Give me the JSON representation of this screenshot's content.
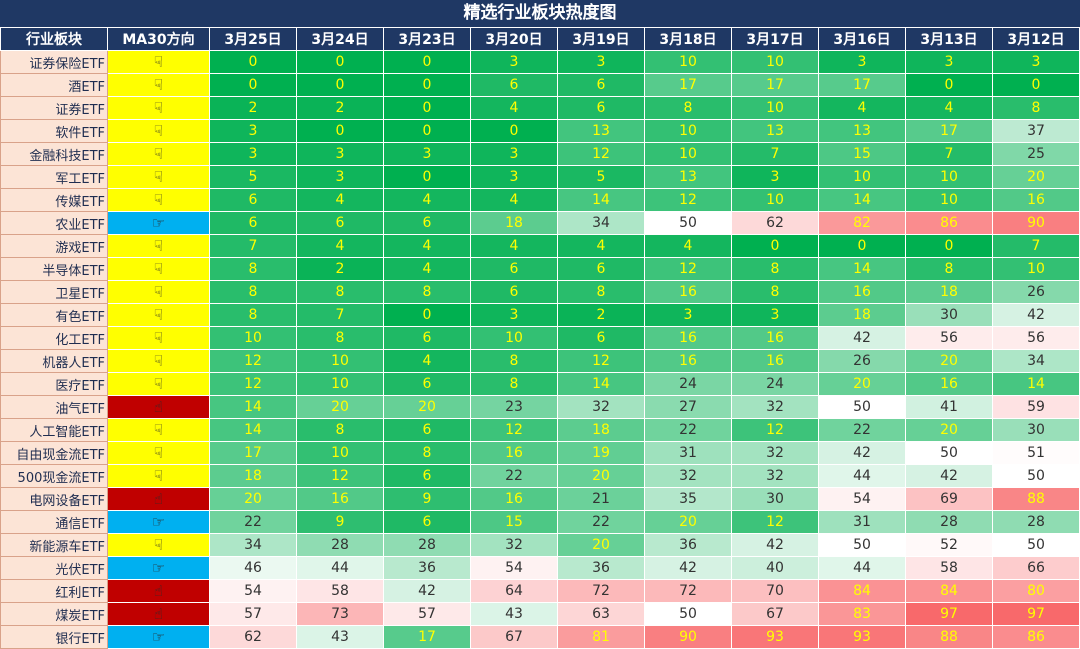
{
  "chart_data": {
    "type": "heatmap",
    "title": "精选行业板块热度图",
    "header_sector": "行业板块",
    "header_ma": "MA30方向",
    "dates": [
      "3月25日",
      "3月24日",
      "3月23日",
      "3月20日",
      "3月19日",
      "3月18日",
      "3月17日",
      "3月16日",
      "3月13日",
      "3月12日"
    ],
    "direction_colors": {
      "down": "#ffff00",
      "up": "#00b0f0",
      "strong": "#c00000"
    },
    "direction_icons": {
      "down": "☟",
      "up": "☞",
      "strong": "☝"
    },
    "rows": [
      {
        "name": "证券保险ETF",
        "dir": "down",
        "values": [
          0,
          0,
          0,
          3,
          3,
          10,
          10,
          3,
          3,
          3
        ]
      },
      {
        "name": "酒ETF",
        "dir": "down",
        "values": [
          0,
          0,
          0,
          6,
          6,
          17,
          17,
          17,
          0,
          0
        ]
      },
      {
        "name": "证券ETF",
        "dir": "down",
        "values": [
          2,
          2,
          0,
          4,
          6,
          8,
          10,
          4,
          4,
          8
        ]
      },
      {
        "name": "软件ETF",
        "dir": "down",
        "values": [
          3,
          0,
          0,
          0,
          13,
          10,
          13,
          13,
          17,
          37
        ]
      },
      {
        "name": "金融科技ETF",
        "dir": "down",
        "values": [
          3,
          3,
          3,
          3,
          12,
          10,
          7,
          15,
          7,
          25
        ]
      },
      {
        "name": "军工ETF",
        "dir": "down",
        "values": [
          5,
          3,
          0,
          3,
          5,
          13,
          3,
          10,
          10,
          20
        ]
      },
      {
        "name": "传媒ETF",
        "dir": "down",
        "values": [
          6,
          4,
          4,
          4,
          14,
          12,
          10,
          14,
          10,
          16
        ]
      },
      {
        "name": "农业ETF",
        "dir": "up",
        "values": [
          6,
          6,
          6,
          18,
          34,
          50,
          62,
          82,
          86,
          90
        ]
      },
      {
        "name": "游戏ETF",
        "dir": "down",
        "values": [
          7,
          4,
          4,
          4,
          4,
          4,
          0,
          0,
          0,
          7
        ]
      },
      {
        "name": "半导体ETF",
        "dir": "down",
        "values": [
          8,
          2,
          4,
          6,
          6,
          12,
          8,
          14,
          8,
          10
        ]
      },
      {
        "name": "卫星ETF",
        "dir": "down",
        "values": [
          8,
          8,
          8,
          6,
          8,
          16,
          8,
          16,
          18,
          26
        ]
      },
      {
        "name": "有色ETF",
        "dir": "down",
        "values": [
          8,
          7,
          0,
          3,
          2,
          3,
          3,
          18,
          30,
          42
        ]
      },
      {
        "name": "化工ETF",
        "dir": "down",
        "values": [
          10,
          8,
          6,
          10,
          6,
          16,
          16,
          42,
          56,
          56
        ]
      },
      {
        "name": "机器人ETF",
        "dir": "down",
        "values": [
          12,
          10,
          4,
          8,
          12,
          16,
          16,
          26,
          20,
          34
        ]
      },
      {
        "name": "医疗ETF",
        "dir": "down",
        "values": [
          12,
          10,
          6,
          8,
          14,
          24,
          24,
          20,
          16,
          14
        ]
      },
      {
        "name": "油气ETF",
        "dir": "strong",
        "values": [
          14,
          20,
          20,
          23,
          32,
          27,
          32,
          50,
          41,
          59
        ]
      },
      {
        "name": "人工智能ETF",
        "dir": "down",
        "values": [
          14,
          8,
          6,
          12,
          18,
          22,
          12,
          22,
          20,
          30
        ]
      },
      {
        "name": "自由现金流ETF",
        "dir": "down",
        "values": [
          17,
          10,
          8,
          16,
          19,
          31,
          32,
          42,
          50,
          51
        ]
      },
      {
        "name": "500现金流ETF",
        "dir": "down",
        "values": [
          18,
          12,
          6,
          22,
          20,
          32,
          32,
          44,
          42,
          50
        ]
      },
      {
        "name": "电网设备ETF",
        "dir": "strong",
        "values": [
          20,
          16,
          9,
          16,
          21,
          35,
          30,
          54,
          69,
          88
        ]
      },
      {
        "name": "通信ETF",
        "dir": "up",
        "values": [
          22,
          9,
          6,
          15,
          22,
          20,
          12,
          31,
          28,
          28
        ]
      },
      {
        "name": "新能源车ETF",
        "dir": "down",
        "values": [
          34,
          28,
          28,
          32,
          20,
          36,
          42,
          50,
          52,
          50
        ]
      },
      {
        "name": "光伏ETF",
        "dir": "up",
        "values": [
          46,
          44,
          36,
          54,
          36,
          42,
          40,
          44,
          58,
          66
        ]
      },
      {
        "name": "红利ETF",
        "dir": "strong",
        "values": [
          54,
          58,
          42,
          64,
          72,
          72,
          70,
          84,
          84,
          80
        ]
      },
      {
        "name": "煤炭ETF",
        "dir": "strong",
        "values": [
          57,
          73,
          57,
          43,
          63,
          50,
          67,
          83,
          97,
          97
        ]
      },
      {
        "name": "银行ETF",
        "dir": "up",
        "values": [
          62,
          43,
          17,
          67,
          81,
          90,
          93,
          93,
          88,
          86
        ]
      }
    ]
  }
}
